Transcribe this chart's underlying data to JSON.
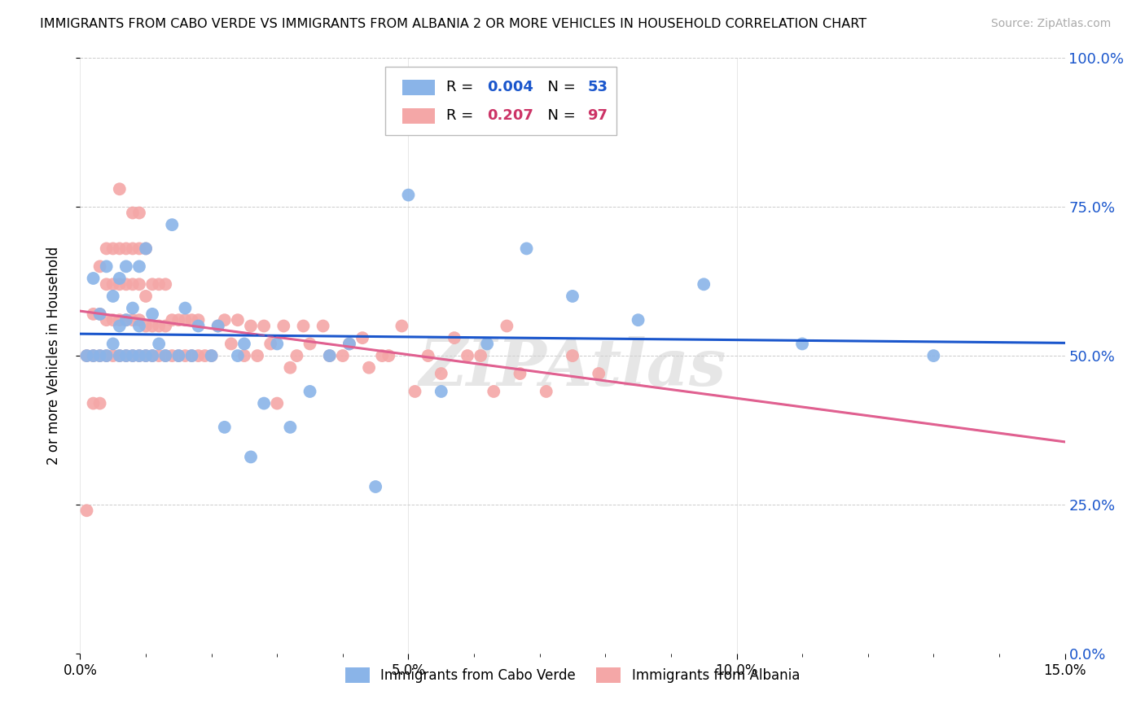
{
  "title": "IMMIGRANTS FROM CABO VERDE VS IMMIGRANTS FROM ALBANIA 2 OR MORE VEHICLES IN HOUSEHOLD CORRELATION CHART",
  "source": "Source: ZipAtlas.com",
  "xlabel_ticks": [
    "0.0%",
    "",
    "",
    "",
    "",
    "5.0%",
    "",
    "",
    "",
    "",
    "10.0%",
    "",
    "",
    "",
    "",
    "15.0%"
  ],
  "xlabel_vals": [
    0.0,
    0.01,
    0.02,
    0.03,
    0.04,
    0.05,
    0.06,
    0.07,
    0.08,
    0.09,
    0.1,
    0.11,
    0.12,
    0.13,
    0.14,
    0.15
  ],
  "xlabel_major_ticks": [
    0.0,
    0.05,
    0.1,
    0.15
  ],
  "xlabel_major_labels": [
    "0.0%",
    "5.0%",
    "10.0%",
    "15.0%"
  ],
  "ylabel_label": "2 or more Vehicles in Household",
  "ylabel_ticks": [
    "0.0%",
    "25.0%",
    "50.0%",
    "75.0%",
    "100.0%"
  ],
  "ylabel_vals": [
    0.0,
    0.25,
    0.5,
    0.75,
    1.0
  ],
  "xlim": [
    0.0,
    0.15
  ],
  "ylim": [
    0.0,
    1.0
  ],
  "cabo_verde_color": "#8ab4e8",
  "albania_color": "#f4a7a7",
  "cabo_verde_R": 0.004,
  "cabo_verde_N": 53,
  "albania_R": 0.207,
  "albania_N": 97,
  "cabo_verde_line_color": "#1a56cc",
  "albania_line_color": "#e06090",
  "watermark": "ZIPAtlas",
  "cabo_verde_x": [
    0.001,
    0.002,
    0.002,
    0.003,
    0.003,
    0.004,
    0.004,
    0.005,
    0.005,
    0.006,
    0.006,
    0.006,
    0.007,
    0.007,
    0.007,
    0.008,
    0.008,
    0.009,
    0.009,
    0.009,
    0.01,
    0.01,
    0.011,
    0.011,
    0.012,
    0.013,
    0.014,
    0.015,
    0.016,
    0.017,
    0.018,
    0.02,
    0.021,
    0.022,
    0.024,
    0.025,
    0.026,
    0.028,
    0.03,
    0.032,
    0.035,
    0.038,
    0.041,
    0.045,
    0.05,
    0.055,
    0.062,
    0.068,
    0.075,
    0.085,
    0.095,
    0.11,
    0.13
  ],
  "cabo_verde_y": [
    0.5,
    0.63,
    0.5,
    0.5,
    0.57,
    0.5,
    0.65,
    0.52,
    0.6,
    0.5,
    0.55,
    0.63,
    0.5,
    0.56,
    0.65,
    0.5,
    0.58,
    0.5,
    0.55,
    0.65,
    0.5,
    0.68,
    0.5,
    0.57,
    0.52,
    0.5,
    0.72,
    0.5,
    0.58,
    0.5,
    0.55,
    0.5,
    0.55,
    0.38,
    0.5,
    0.52,
    0.33,
    0.42,
    0.52,
    0.38,
    0.44,
    0.5,
    0.52,
    0.28,
    0.77,
    0.44,
    0.52,
    0.68,
    0.6,
    0.56,
    0.62,
    0.52,
    0.5
  ],
  "albania_x": [
    0.001,
    0.001,
    0.002,
    0.002,
    0.002,
    0.003,
    0.003,
    0.003,
    0.003,
    0.004,
    0.004,
    0.004,
    0.004,
    0.005,
    0.005,
    0.005,
    0.005,
    0.006,
    0.006,
    0.006,
    0.006,
    0.006,
    0.007,
    0.007,
    0.007,
    0.007,
    0.008,
    0.008,
    0.008,
    0.008,
    0.008,
    0.009,
    0.009,
    0.009,
    0.009,
    0.009,
    0.01,
    0.01,
    0.01,
    0.01,
    0.011,
    0.011,
    0.011,
    0.012,
    0.012,
    0.012,
    0.013,
    0.013,
    0.013,
    0.014,
    0.014,
    0.015,
    0.015,
    0.016,
    0.016,
    0.017,
    0.017,
    0.018,
    0.018,
    0.019,
    0.02,
    0.021,
    0.022,
    0.023,
    0.024,
    0.025,
    0.026,
    0.027,
    0.028,
    0.029,
    0.031,
    0.033,
    0.035,
    0.037,
    0.04,
    0.043,
    0.046,
    0.049,
    0.053,
    0.057,
    0.061,
    0.065,
    0.03,
    0.032,
    0.034,
    0.038,
    0.041,
    0.044,
    0.047,
    0.051,
    0.055,
    0.059,
    0.063,
    0.067,
    0.071,
    0.075,
    0.079
  ],
  "albania_y": [
    0.24,
    0.5,
    0.42,
    0.5,
    0.57,
    0.42,
    0.5,
    0.57,
    0.65,
    0.5,
    0.56,
    0.62,
    0.68,
    0.5,
    0.56,
    0.62,
    0.68,
    0.5,
    0.56,
    0.62,
    0.68,
    0.78,
    0.5,
    0.56,
    0.62,
    0.68,
    0.5,
    0.56,
    0.62,
    0.68,
    0.74,
    0.5,
    0.56,
    0.62,
    0.68,
    0.74,
    0.5,
    0.55,
    0.6,
    0.68,
    0.5,
    0.55,
    0.62,
    0.5,
    0.55,
    0.62,
    0.5,
    0.55,
    0.62,
    0.5,
    0.56,
    0.5,
    0.56,
    0.5,
    0.56,
    0.5,
    0.56,
    0.5,
    0.56,
    0.5,
    0.5,
    0.55,
    0.56,
    0.52,
    0.56,
    0.5,
    0.55,
    0.5,
    0.55,
    0.52,
    0.55,
    0.5,
    0.52,
    0.55,
    0.5,
    0.53,
    0.5,
    0.55,
    0.5,
    0.53,
    0.5,
    0.55,
    0.42,
    0.48,
    0.55,
    0.5,
    0.52,
    0.48,
    0.5,
    0.44,
    0.47,
    0.5,
    0.44,
    0.47,
    0.44,
    0.5,
    0.47
  ]
}
